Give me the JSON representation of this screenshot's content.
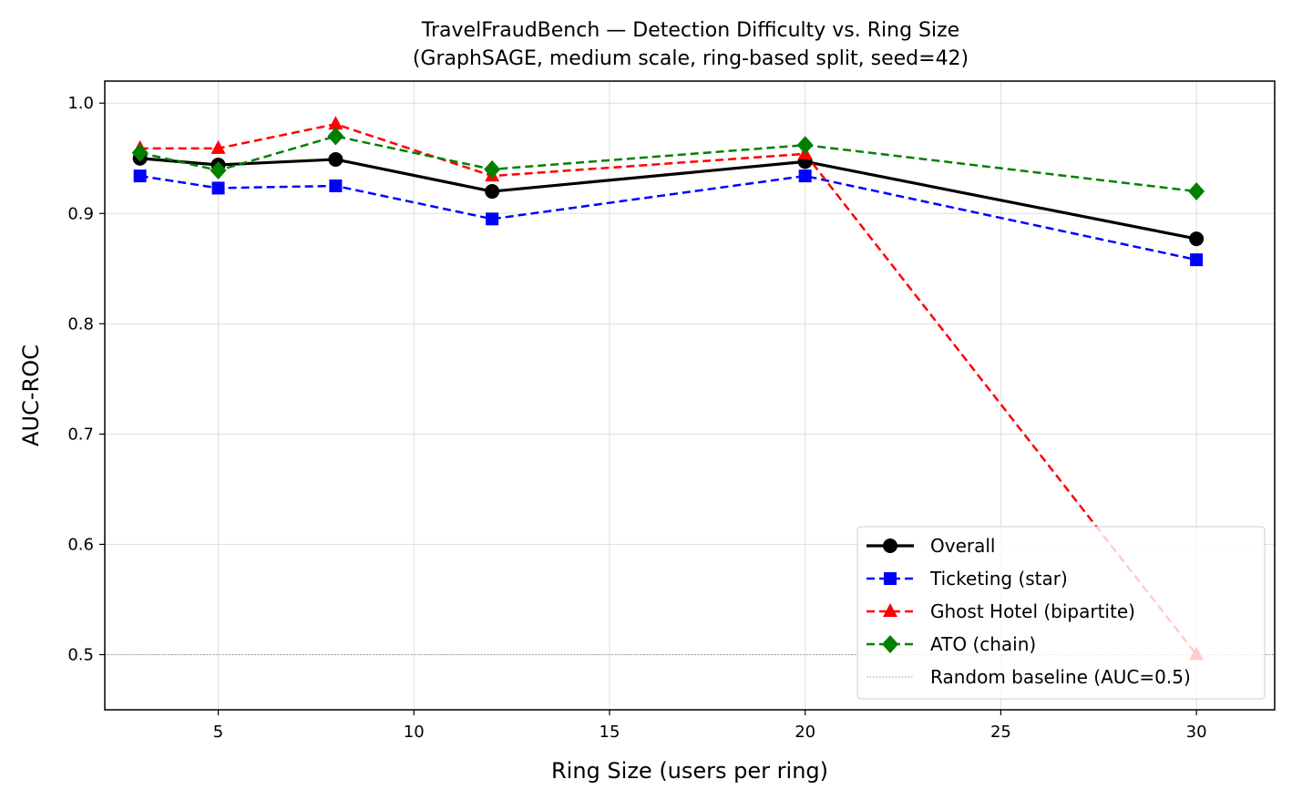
{
  "chart_data": {
    "type": "line",
    "title": "TravelFraudBench — Detection Difficulty vs. Ring Size",
    "subtitle": "(GraphSAGE, medium scale, ring-based split, seed=42)",
    "xlabel": "Ring Size (users per ring)",
    "ylabel": "AUC-ROC",
    "xlim": [
      2.1,
      32
    ],
    "ylim": [
      0.45,
      1.02
    ],
    "xticks": [
      5,
      10,
      15,
      20,
      25,
      30
    ],
    "yticks": [
      0.5,
      0.6,
      0.7,
      0.8,
      0.9,
      1.0
    ],
    "xtick_labels": [
      "5",
      "10",
      "15",
      "20",
      "25",
      "30"
    ],
    "ytick_labels": [
      "0.5",
      "0.6",
      "0.7",
      "0.8",
      "0.9",
      "1.0"
    ],
    "grid": true,
    "legend_position": "lower-right",
    "x": [
      3,
      5,
      8,
      12,
      20,
      30
    ],
    "series": [
      {
        "name": "Overall",
        "values": [
          0.95,
          0.944,
          0.949,
          0.92,
          0.947,
          0.877
        ],
        "color": "#000000",
        "marker": "circle",
        "dashed": false
      },
      {
        "name": "Ticketing (star)",
        "values": [
          0.934,
          0.923,
          0.925,
          0.895,
          0.934,
          0.858
        ],
        "color": "#0000ff",
        "marker": "square",
        "dashed": true
      },
      {
        "name": "Ghost Hotel (bipartite)",
        "values": [
          0.959,
          0.959,
          0.981,
          0.934,
          0.954,
          0.5
        ],
        "color": "#ff0000",
        "marker": "triangle",
        "dashed": true
      },
      {
        "name": "ATO (chain)",
        "values": [
          0.955,
          0.939,
          0.97,
          0.94,
          0.962,
          0.92
        ],
        "color": "#008000",
        "marker": "diamond",
        "dashed": true
      }
    ],
    "baseline": {
      "name": "Random baseline (AUC=0.5)",
      "value": 0.5,
      "color": "#999999"
    }
  }
}
